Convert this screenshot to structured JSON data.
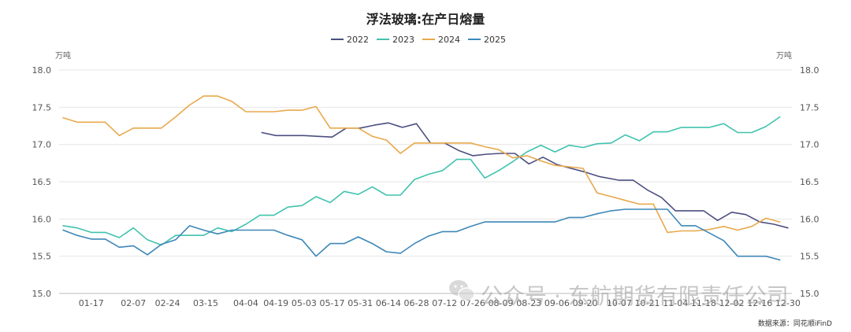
{
  "chart_data": {
    "type": "line",
    "title": "浮法玻璃:在产日熔量",
    "unit_left": "万吨",
    "unit_right": "万吨",
    "ylim": [
      15.0,
      18.0
    ],
    "yticks": [
      "15.0",
      "15.5",
      "16.0",
      "16.5",
      "17.0",
      "17.5",
      "18.0"
    ],
    "xticks": [
      "01-17",
      "02-07",
      "02-24",
      "03-15",
      "04-04",
      "04-19",
      "05-03",
      "05-17",
      "05-31",
      "06-14",
      "06-28",
      "07-12",
      "07-26",
      "08-09",
      "08-23",
      "09-06",
      "09-20",
      "10-07",
      "10-21",
      "11-04",
      "11-18",
      "12-02",
      "12-16",
      "12-30"
    ],
    "grid": "horizontal",
    "legend_position": "top-center",
    "series": [
      {
        "name": "2022",
        "color": "#4b4f80",
        "points": [
          [
            "04-12",
            17.16
          ],
          [
            "04-19",
            17.12
          ],
          [
            "04-26",
            17.12
          ],
          [
            "05-03",
            17.12
          ],
          [
            "05-10",
            17.11
          ],
          [
            "05-17",
            17.1
          ],
          [
            "05-24",
            17.22
          ],
          [
            "05-31",
            17.22
          ],
          [
            "06-07",
            17.26
          ],
          [
            "06-14",
            17.29
          ],
          [
            "06-21",
            17.23
          ],
          [
            "06-28",
            17.28
          ],
          [
            "07-05",
            17.02
          ],
          [
            "07-12",
            17.02
          ],
          [
            "07-19",
            16.92
          ],
          [
            "07-26",
            16.85
          ],
          [
            "08-02",
            16.87
          ],
          [
            "08-09",
            16.88
          ],
          [
            "08-16",
            16.88
          ],
          [
            "08-23",
            16.74
          ],
          [
            "08-30",
            16.83
          ],
          [
            "09-06",
            16.73
          ],
          [
            "09-13",
            16.68
          ],
          [
            "09-20",
            16.63
          ],
          [
            "09-27",
            16.57
          ],
          [
            "10-07",
            16.52
          ],
          [
            "10-14",
            16.52
          ],
          [
            "10-21",
            16.39
          ],
          [
            "10-28",
            16.29
          ],
          [
            "11-04",
            16.11
          ],
          [
            "11-11",
            16.11
          ],
          [
            "11-18",
            16.11
          ],
          [
            "11-25",
            15.98
          ],
          [
            "12-02",
            16.09
          ],
          [
            "12-09",
            16.06
          ],
          [
            "12-16",
            15.96
          ],
          [
            "12-23",
            15.93
          ],
          [
            "12-30",
            15.88
          ]
        ]
      },
      {
        "name": "2023",
        "color": "#40c2ae",
        "points": [
          [
            "01-03",
            15.91
          ],
          [
            "01-10",
            15.88
          ],
          [
            "01-17",
            15.82
          ],
          [
            "01-24",
            15.82
          ],
          [
            "01-31",
            15.75
          ],
          [
            "02-07",
            15.88
          ],
          [
            "02-14",
            15.72
          ],
          [
            "02-21",
            15.65
          ],
          [
            "02-28",
            15.78
          ],
          [
            "03-07",
            15.78
          ],
          [
            "03-14",
            15.78
          ],
          [
            "03-21",
            15.88
          ],
          [
            "03-28",
            15.83
          ],
          [
            "04-04",
            15.93
          ],
          [
            "04-11",
            16.05
          ],
          [
            "04-18",
            16.05
          ],
          [
            "04-25",
            16.16
          ],
          [
            "05-02",
            16.18
          ],
          [
            "05-09",
            16.3
          ],
          [
            "05-16",
            16.22
          ],
          [
            "05-23",
            16.37
          ],
          [
            "05-30",
            16.33
          ],
          [
            "06-06",
            16.43
          ],
          [
            "06-13",
            16.32
          ],
          [
            "06-20",
            16.32
          ],
          [
            "06-27",
            16.53
          ],
          [
            "07-04",
            16.6
          ],
          [
            "07-11",
            16.65
          ],
          [
            "07-18",
            16.8
          ],
          [
            "07-25",
            16.8
          ],
          [
            "08-01",
            16.55
          ],
          [
            "08-08",
            16.65
          ],
          [
            "08-15",
            16.77
          ],
          [
            "08-22",
            16.9
          ],
          [
            "08-29",
            16.99
          ],
          [
            "09-05",
            16.9
          ],
          [
            "09-12",
            16.99
          ],
          [
            "09-19",
            16.96
          ],
          [
            "09-26",
            17.01
          ],
          [
            "10-03",
            17.02
          ],
          [
            "10-10",
            17.13
          ],
          [
            "10-17",
            17.05
          ],
          [
            "10-24",
            17.17
          ],
          [
            "10-31",
            17.17
          ],
          [
            "11-07",
            17.23
          ],
          [
            "11-14",
            17.23
          ],
          [
            "11-21",
            17.23
          ],
          [
            "11-28",
            17.28
          ],
          [
            "12-05",
            17.16
          ],
          [
            "12-12",
            17.16
          ],
          [
            "12-19",
            17.24
          ],
          [
            "12-26",
            17.37
          ]
        ]
      },
      {
        "name": "2024",
        "color": "#e8a94c",
        "points": [
          [
            "01-03",
            17.36
          ],
          [
            "01-10",
            17.3
          ],
          [
            "01-17",
            17.3
          ],
          [
            "01-24",
            17.3
          ],
          [
            "01-31",
            17.12
          ],
          [
            "02-07",
            17.22
          ],
          [
            "02-14",
            17.22
          ],
          [
            "02-21",
            17.22
          ],
          [
            "02-28",
            17.37
          ],
          [
            "03-07",
            17.53
          ],
          [
            "03-14",
            17.65
          ],
          [
            "03-21",
            17.65
          ],
          [
            "03-28",
            17.58
          ],
          [
            "04-04",
            17.44
          ],
          [
            "04-11",
            17.44
          ],
          [
            "04-18",
            17.44
          ],
          [
            "04-25",
            17.46
          ],
          [
            "05-02",
            17.46
          ],
          [
            "05-09",
            17.51
          ],
          [
            "05-16",
            17.22
          ],
          [
            "05-23",
            17.22
          ],
          [
            "05-30",
            17.22
          ],
          [
            "06-06",
            17.11
          ],
          [
            "06-13",
            17.06
          ],
          [
            "06-20",
            16.88
          ],
          [
            "06-27",
            17.02
          ],
          [
            "07-04",
            17.02
          ],
          [
            "07-11",
            17.02
          ],
          [
            "07-18",
            17.02
          ],
          [
            "07-25",
            17.02
          ],
          [
            "08-01",
            16.97
          ],
          [
            "08-08",
            16.93
          ],
          [
            "08-15",
            16.82
          ],
          [
            "08-22",
            16.85
          ],
          [
            "08-29",
            16.78
          ],
          [
            "09-05",
            16.72
          ],
          [
            "09-12",
            16.7
          ],
          [
            "09-19",
            16.68
          ],
          [
            "09-26",
            16.35
          ],
          [
            "10-03",
            16.3
          ],
          [
            "10-10",
            16.25
          ],
          [
            "10-17",
            16.2
          ],
          [
            "10-24",
            16.2
          ],
          [
            "10-31",
            15.82
          ],
          [
            "11-07",
            15.84
          ],
          [
            "11-14",
            15.84
          ],
          [
            "11-21",
            15.86
          ],
          [
            "11-28",
            15.9
          ],
          [
            "12-05",
            15.85
          ],
          [
            "12-12",
            15.9
          ],
          [
            "12-19",
            16.01
          ],
          [
            "12-26",
            15.96
          ]
        ]
      },
      {
        "name": "2025",
        "color": "#3d87b8",
        "points": [
          [
            "01-03",
            15.85
          ],
          [
            "01-10",
            15.78
          ],
          [
            "01-17",
            15.73
          ],
          [
            "01-24",
            15.73
          ],
          [
            "01-31",
            15.62
          ],
          [
            "02-07",
            15.64
          ],
          [
            "02-14",
            15.52
          ],
          [
            "02-21",
            15.66
          ],
          [
            "02-28",
            15.72
          ],
          [
            "03-07",
            15.91
          ],
          [
            "03-14",
            15.85
          ],
          [
            "03-21",
            15.8
          ],
          [
            "03-28",
            15.85
          ],
          [
            "04-04",
            15.85
          ],
          [
            "04-11",
            15.85
          ],
          [
            "04-18",
            15.85
          ],
          [
            "04-25",
            15.78
          ],
          [
            "05-02",
            15.72
          ],
          [
            "05-09",
            15.5
          ],
          [
            "05-16",
            15.67
          ],
          [
            "05-23",
            15.67
          ],
          [
            "05-30",
            15.76
          ],
          [
            "06-06",
            15.67
          ],
          [
            "06-13",
            15.56
          ],
          [
            "06-20",
            15.54
          ],
          [
            "06-27",
            15.67
          ],
          [
            "07-04",
            15.77
          ],
          [
            "07-11",
            15.83
          ],
          [
            "07-18",
            15.83
          ],
          [
            "07-25",
            15.9
          ],
          [
            "08-01",
            15.96
          ],
          [
            "08-08",
            15.96
          ],
          [
            "08-15",
            15.96
          ],
          [
            "08-22",
            15.96
          ],
          [
            "08-29",
            15.96
          ],
          [
            "09-05",
            15.96
          ],
          [
            "09-12",
            16.02
          ],
          [
            "09-19",
            16.02
          ],
          [
            "09-26",
            16.07
          ],
          [
            "10-03",
            16.11
          ],
          [
            "10-10",
            16.13
          ],
          [
            "10-17",
            16.13
          ],
          [
            "10-24",
            16.13
          ],
          [
            "10-31",
            16.13
          ],
          [
            "11-07",
            15.91
          ],
          [
            "11-14",
            15.91
          ],
          [
            "11-21",
            15.81
          ],
          [
            "11-28",
            15.71
          ],
          [
            "12-05",
            15.5
          ],
          [
            "12-12",
            15.5
          ],
          [
            "12-19",
            15.5
          ],
          [
            "12-26",
            15.45
          ]
        ]
      }
    ],
    "source": "数据来源：同花顺iFinD",
    "watermark": "公众号 · 东航期货有限责任公司"
  }
}
